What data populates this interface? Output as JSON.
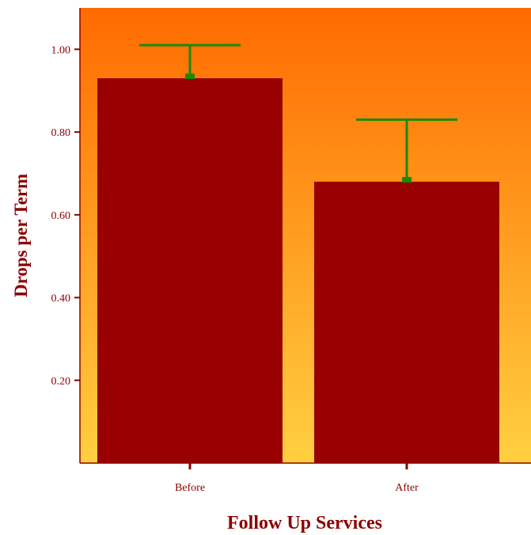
{
  "chart_data": {
    "type": "bar",
    "title": "",
    "xlabel": "Follow Up Services",
    "ylabel": "Drops per Term",
    "categories": [
      "Before",
      "After"
    ],
    "values": [
      0.93,
      0.68
    ],
    "error_upper": [
      1.01,
      0.83
    ],
    "ylim": [
      0,
      1.1
    ],
    "yticks": [
      0.2,
      0.4,
      0.6,
      0.8,
      1.0
    ],
    "ytick_labels": [
      "0.20",
      "0.40",
      "0.60",
      "0.80",
      "1.00"
    ],
    "grid": false,
    "legend": "none",
    "colors": {
      "bar": "#990000",
      "error_bar": "#1a8a00",
      "background_top": "#ff6a00",
      "background_bottom": "#ffd040",
      "axis": "#8b0000",
      "text": "#8b0000"
    }
  }
}
